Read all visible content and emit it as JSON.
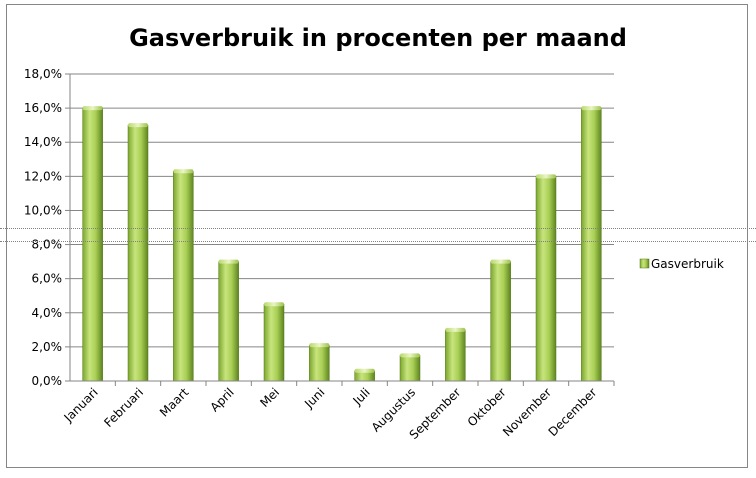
{
  "chart_data": {
    "type": "bar",
    "title": "Gasverbruik in procenten per maand",
    "xlabel": "",
    "ylabel": "",
    "categories": [
      "Januari",
      "Februari",
      "Maart",
      "April",
      "Mei",
      "Juni",
      "Juli",
      "Augustus",
      "September",
      "Oktober",
      "November",
      "December"
    ],
    "series": [
      {
        "name": "Gasverbruik",
        "values": [
          16.0,
          15.0,
          12.3,
          7.0,
          4.5,
          2.1,
          0.6,
          1.5,
          3.0,
          7.0,
          12.0,
          16.0
        ]
      }
    ],
    "ylim": [
      0,
      18
    ],
    "yticks": [
      "0,0%",
      "2,0%",
      "4,0%",
      "6,0%",
      "8,0%",
      "10,0%",
      "12,0%",
      "14,0%",
      "16,0%",
      "18,0%"
    ],
    "grid": true,
    "legend_position": "right",
    "colors": {
      "bar_light": "#c4e07a",
      "bar_mid": "#8db838",
      "bar_dark": "#557a1c",
      "grid": "#868686",
      "axis": "#868686"
    }
  }
}
